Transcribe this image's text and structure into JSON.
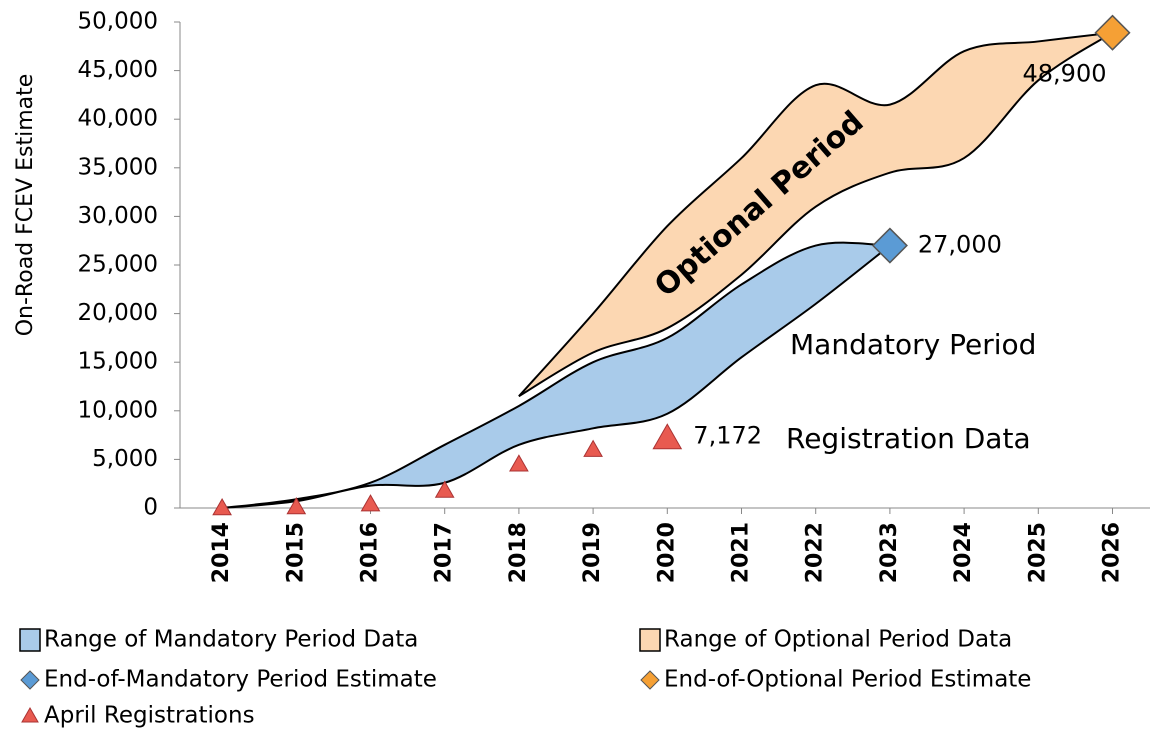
{
  "chart_data": {
    "type": "range",
    "y_axis_label": "On-Road FCEV Estimate",
    "categories": [
      "2014",
      "2015",
      "2016",
      "2017",
      "2018",
      "2019",
      "2020",
      "2021",
      "2022",
      "2023",
      "2024",
      "2025",
      "2026"
    ],
    "ylim": [
      0,
      50000
    ],
    "yticks": [
      0,
      {
        "value": 5000,
        "label": "5,000"
      },
      {
        "value": 10000,
        "label": "10,000"
      },
      {
        "value": 15000,
        "label": "15,000"
      },
      {
        "value": 20000,
        "label": "20,000"
      },
      {
        "value": 25000,
        "label": "25,000"
      },
      {
        "value": 30000,
        "label": "30,000"
      },
      {
        "value": 35000,
        "label": "35,000"
      },
      {
        "value": 40000,
        "label": "40,000"
      },
      {
        "value": 45000,
        "label": "45,000"
      },
      {
        "value": 50000,
        "label": "50,000"
      }
    ],
    "series": [
      {
        "name": "Range of Mandatory Period Data",
        "marker": "band",
        "color": "#a9cbea",
        "low": [
          0,
          700,
          2300,
          2600,
          6500,
          8200,
          9700,
          15500,
          21000,
          27000,
          null,
          null,
          null
        ],
        "high": [
          0,
          900,
          2600,
          6500,
          10500,
          15000,
          17500,
          23000,
          27000,
          27000,
          null,
          null,
          null
        ]
      },
      {
        "name": "Range of Optional Period Data",
        "marker": "band",
        "color": "#fcd7b2",
        "low": [
          null,
          null,
          null,
          null,
          11500,
          16000,
          18500,
          24000,
          31000,
          34500,
          36000,
          44000,
          48900
        ],
        "high": [
          null,
          null,
          null,
          null,
          11500,
          20000,
          29000,
          36000,
          43500,
          41500,
          47000,
          48000,
          48900
        ]
      },
      {
        "name": "End-of-Mandatory Period Estimate",
        "marker": "diamond",
        "color": "#5b9bd5",
        "values": [
          null,
          null,
          null,
          null,
          null,
          null,
          null,
          null,
          null,
          27000,
          null,
          null,
          null
        ],
        "value_labels": [
          null,
          null,
          null,
          null,
          null,
          null,
          null,
          null,
          null,
          "27,000",
          null,
          null,
          null
        ]
      },
      {
        "name": "End-of-Optional Period Estimate",
        "marker": "diamond",
        "color": "#f5a035",
        "values": [
          null,
          null,
          null,
          null,
          null,
          null,
          null,
          null,
          null,
          null,
          null,
          null,
          48900
        ],
        "value_labels": [
          null,
          null,
          null,
          null,
          null,
          null,
          null,
          null,
          null,
          null,
          null,
          null,
          "48,900"
        ]
      },
      {
        "name": "April Registrations",
        "marker": "triangle",
        "color": "#e85a50",
        "values": [
          0,
          100,
          400,
          1800,
          4500,
          6000,
          7172,
          null,
          null,
          null,
          null,
          null,
          null
        ],
        "value_labels": [
          null,
          null,
          null,
          null,
          null,
          null,
          "7,172",
          null,
          null,
          null,
          null,
          null,
          null
        ]
      }
    ],
    "annotations": [
      "Optional Period",
      "Mandatory Period",
      "Registration Data"
    ]
  }
}
